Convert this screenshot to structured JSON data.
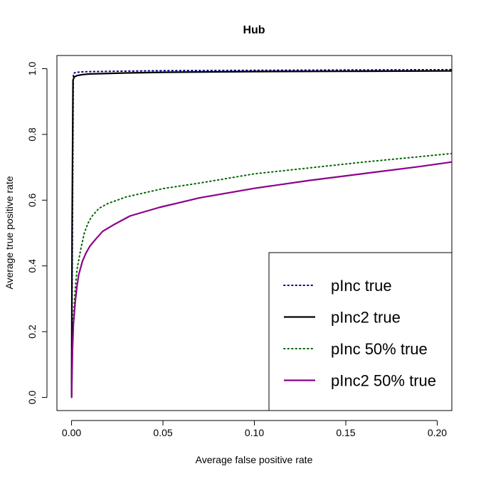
{
  "chart_data": {
    "type": "line",
    "title": "Hub",
    "xlabel": "Average false positive rate",
    "ylabel": "Average true positive rate",
    "xlim": [
      -0.008,
      0.208
    ],
    "ylim": [
      -0.04,
      1.04
    ],
    "xticks": [
      0.0,
      0.05,
      0.1,
      0.15,
      0.2
    ],
    "xtick_labels": [
      "0.00",
      "0.05",
      "0.10",
      "0.15",
      "0.20"
    ],
    "yticks": [
      0.0,
      0.2,
      0.4,
      0.6,
      0.8,
      1.0
    ],
    "ytick_labels": [
      "0.0",
      "0.2",
      "0.4",
      "0.6",
      "0.8",
      "1.0"
    ],
    "grid": false,
    "legend_position": "bottom-right",
    "series": [
      {
        "name": "pInc true",
        "color": "#00008B",
        "dash": "dotted",
        "x": [
          0,
          0.0005,
          0.001,
          0.002,
          0.005,
          0.01,
          0.05,
          0.1,
          0.15,
          0.208
        ],
        "y": [
          0,
          0.5,
          0.985,
          0.988,
          0.99,
          0.991,
          0.994,
          0.995,
          0.996,
          0.997
        ]
      },
      {
        "name": "pInc2 true",
        "color": "#000000",
        "dash": "solid",
        "x": [
          0,
          0.0003,
          0.0008,
          0.0015,
          0.003,
          0.006,
          0.01,
          0.03,
          0.05,
          0.1,
          0.15,
          0.208
        ],
        "y": [
          0,
          0.5,
          0.965,
          0.975,
          0.979,
          0.982,
          0.984,
          0.987,
          0.989,
          0.991,
          0.992,
          0.993
        ]
      },
      {
        "name": "pInc 50% true",
        "color": "#006400",
        "dash": "dotted",
        "x": [
          0,
          0.0005,
          0.001,
          0.002,
          0.003,
          0.005,
          0.007,
          0.009,
          0.011,
          0.015,
          0.02,
          0.03,
          0.05,
          0.07,
          0.1,
          0.13,
          0.16,
          0.19,
          0.208
        ],
        "y": [
          0,
          0.14,
          0.24,
          0.33,
          0.39,
          0.45,
          0.5,
          0.53,
          0.55,
          0.575,
          0.59,
          0.61,
          0.635,
          0.652,
          0.68,
          0.698,
          0.716,
          0.732,
          0.742
        ]
      },
      {
        "name": "pInc2 50% true",
        "color": "#8B008B",
        "dash": "solid",
        "x": [
          0,
          0.0005,
          0.001,
          0.002,
          0.003,
          0.004,
          0.006,
          0.008,
          0.01,
          0.013,
          0.017,
          0.023,
          0.032,
          0.048,
          0.07,
          0.1,
          0.13,
          0.16,
          0.19,
          0.208
        ],
        "y": [
          0,
          0.14,
          0.22,
          0.29,
          0.34,
          0.375,
          0.415,
          0.44,
          0.46,
          0.48,
          0.505,
          0.525,
          0.552,
          0.578,
          0.607,
          0.636,
          0.66,
          0.681,
          0.702,
          0.716
        ]
      }
    ]
  }
}
